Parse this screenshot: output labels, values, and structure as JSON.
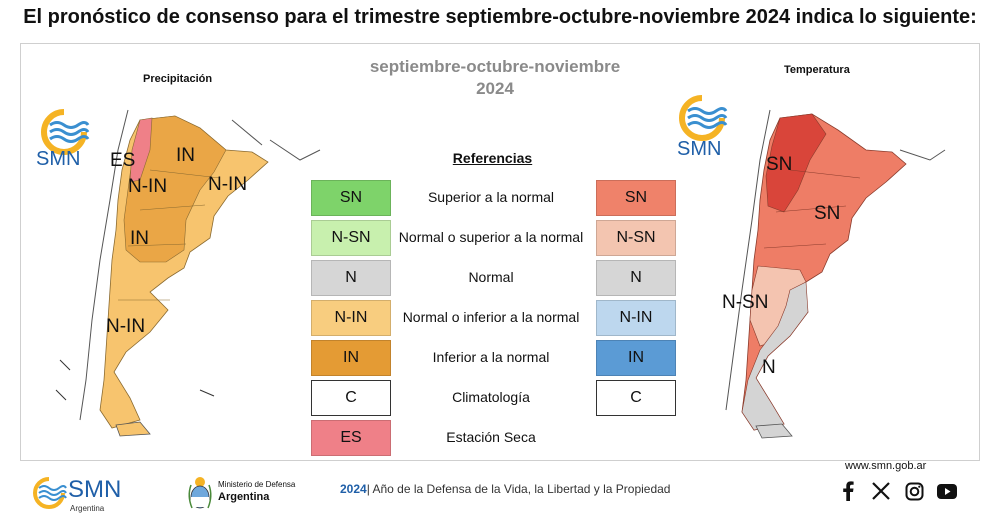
{
  "headline": "El pronóstico de consenso para el trimestre septiembre-octubre-noviembre 2024 indica lo siguiente:",
  "season": {
    "line1": "septiembre-octubre-noviembre",
    "line2": "2024"
  },
  "maps": {
    "left": {
      "title": "Precipitación",
      "labels": [
        "ES",
        "IN",
        "N-IN",
        "N-IN",
        "IN",
        "N-IN"
      ]
    },
    "right": {
      "title": "Temperatura",
      "labels": [
        "SN",
        "SN",
        "N-SN",
        "N"
      ]
    }
  },
  "logo_text": "SMN",
  "references": {
    "title": "Referencias",
    "rows": [
      {
        "label": "Superior a la normal",
        "left": "SN",
        "left_color": "#7ed36a",
        "right": "SN",
        "right_color": "#ef826a"
      },
      {
        "label": "Normal o superior a la normal",
        "left": "N-SN",
        "left_color": "#c8f0ae",
        "right": "N-SN",
        "right_color": "#f3c5b0"
      },
      {
        "label": "Normal",
        "left": "N",
        "left_color": "#d6d6d6",
        "right": "N",
        "right_color": "#d6d6d6"
      },
      {
        "label": "Normal o inferior a la normal",
        "left": "N-IN",
        "left_color": "#f8cd7f",
        "right": "N-IN",
        "right_color": "#bdd7ee"
      },
      {
        "label": "Inferior a la normal",
        "left": "IN",
        "left_color": "#e49b34",
        "right": "IN",
        "right_color": "#5b9bd5"
      },
      {
        "label": "Climatología",
        "left": "C",
        "left_color": "#ffffff",
        "right": "C",
        "right_color": "#ffffff"
      },
      {
        "label": "Estación Seca",
        "left": "ES",
        "left_color": "#ef8088"
      }
    ]
  },
  "footer": {
    "smn": "SMN",
    "smn_sub": "Argentina",
    "ministry_line1": "Ministerio de Defensa",
    "ministry_line2": "Argentina",
    "year": "2024",
    "motto": "Año de la Defensa de la Vida, la Libertad y la Propiedad",
    "website": "www.smn.gob.ar",
    "social_icons": [
      "facebook-icon",
      "x-icon",
      "instagram-icon",
      "youtube-icon"
    ]
  },
  "colors": {
    "precip_base": "#f7c46e",
    "precip_in": "#eaa646",
    "precip_es": "#ef8088",
    "temp_sn": "#ee7d66",
    "temp_sn_dark": "#d9453a",
    "temp_nsn": "#f4c4b0",
    "temp_n": "#d4d4d4",
    "smn_blue": "#1f5fa8",
    "smn_yellow": "#f5b324"
  }
}
